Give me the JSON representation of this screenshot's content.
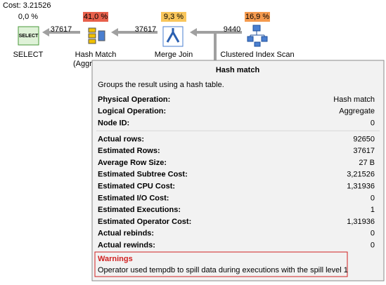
{
  "header": {
    "cost": "Cost: 3.21526"
  },
  "nodes": [
    {
      "label": "SELECT",
      "percent": "0,0 %"
    },
    {
      "label": "Hash Match",
      "sublabel": "(Aggregate)",
      "percent": "41,0 %"
    },
    {
      "label": "Merge Join",
      "percent": "9,3 %"
    },
    {
      "label": "Clustered Index Scan",
      "percent": "16,9 %"
    }
  ],
  "edges": [
    "37617",
    "37617",
    "9440"
  ],
  "tooltip": {
    "title": "Hash match",
    "description": "Groups the result using a hash table.",
    "groups": [
      [
        [
          "Physical Operation:",
          "Hash match"
        ],
        [
          "Logical Operation:",
          "Aggregate"
        ],
        [
          "Node ID:",
          "0"
        ]
      ],
      [
        [
          "Actual rows:",
          "92650"
        ],
        [
          "Estimated Rows:",
          "37617"
        ],
        [
          "Average Row Size:",
          "27 B"
        ],
        [
          "Estimated Subtree Cost:",
          "3,21526"
        ],
        [
          "Estimated CPU Cost:",
          "1,31936"
        ],
        [
          "Estimated I/O Cost:",
          "0"
        ],
        [
          "Estimated Executions:",
          "1"
        ],
        [
          "Estimated Operator Cost:",
          "1,31936"
        ],
        [
          "Actual rebinds:",
          "0"
        ],
        [
          "Actual rewinds:",
          "0"
        ]
      ]
    ],
    "warnings": {
      "title": "Warnings",
      "text": "Operator used tempdb to spill data during executions with the spill level 1"
    }
  }
}
